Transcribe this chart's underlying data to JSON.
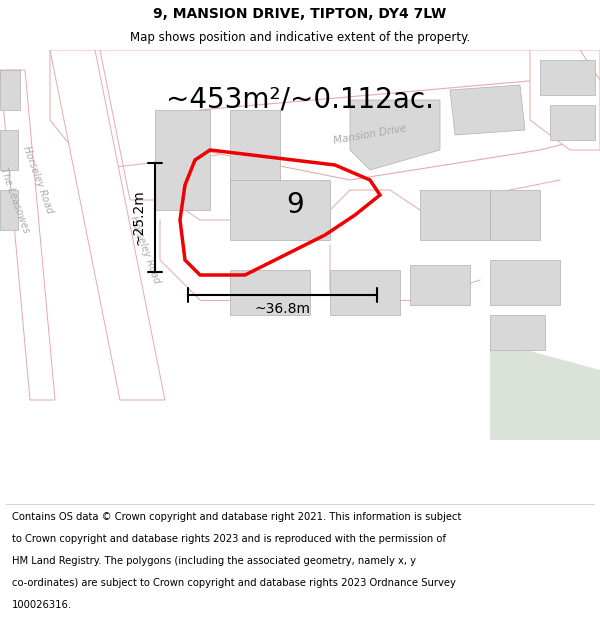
{
  "title_line1": "9, MANSION DRIVE, TIPTON, DY4 7LW",
  "title_line2": "Map shows position and indicative extent of the property.",
  "area_text": "~453m²/~0.112ac.",
  "label_9": "9",
  "dim_vertical": "~25.2m",
  "dim_horizontal": "~36.8m",
  "map_bg": "#f7f5f3",
  "road_edge": "#e8aaaa",
  "road_fill": "#ffffff",
  "building_color": "#d8d8d8",
  "building_edge": "#b0b0b0",
  "plot_color": "#ee0000",
  "green_color": "#cdd8ca",
  "label_color": "#aaaaaa",
  "title_fontsize": 10,
  "subtitle_fontsize": 8.5,
  "area_fontsize": 20,
  "label_fontsize": 20,
  "dim_fontsize": 10,
  "footer_fontsize": 7.2,
  "footer_lines": [
    "Contains OS data © Crown copyright and database right 2021. This information is subject",
    "to Crown copyright and database rights 2023 and is reproduced with the permission of",
    "HM Land Registry. The polygons (including the associated geometry, namely x, y",
    "co-ordinates) are subject to Crown copyright and database rights 2023 Ordnance Survey",
    "100026316."
  ]
}
